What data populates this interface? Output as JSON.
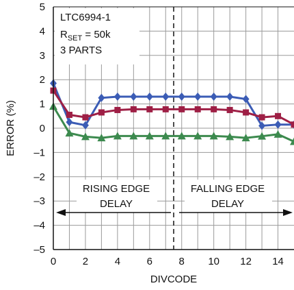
{
  "chart_data": {
    "type": "line",
    "xlabel": "DIVCODE",
    "ylabel": "ERROR (%)",
    "xlim": [
      0,
      15
    ],
    "ylim": [
      -5,
      5
    ],
    "xticks": [
      "0",
      "2",
      "4",
      "6",
      "8",
      "10",
      "12",
      "14"
    ],
    "yticks": [
      "5",
      "4",
      "3",
      "2",
      "1",
      "0",
      "–1",
      "–2",
      "–3",
      "–4",
      "–5"
    ],
    "grid": true,
    "x": [
      0,
      1,
      2,
      3,
      4,
      5,
      6,
      7,
      8,
      9,
      10,
      11,
      12,
      13,
      14,
      15
    ],
    "series": [
      {
        "marker": "diamond",
        "color": "#3b5cb5",
        "values": [
          1.85,
          0.25,
          0.12,
          1.25,
          1.3,
          1.3,
          1.3,
          1.3,
          1.3,
          1.3,
          1.3,
          1.3,
          1.2,
          0.1,
          0.15,
          0.15
        ]
      },
      {
        "marker": "square",
        "color": "#9e1f45",
        "values": [
          1.55,
          0.55,
          0.45,
          0.65,
          0.75,
          0.78,
          0.78,
          0.78,
          0.78,
          0.78,
          0.78,
          0.75,
          0.65,
          0.45,
          0.5,
          0.15
        ]
      },
      {
        "marker": "triangle",
        "color": "#3c8a4e",
        "values": [
          0.9,
          -0.2,
          -0.35,
          -0.4,
          -0.32,
          -0.32,
          -0.32,
          -0.32,
          -0.32,
          -0.32,
          -0.32,
          -0.35,
          -0.4,
          -0.33,
          -0.25,
          -0.55
        ]
      }
    ],
    "annotations": {
      "box_line1": "LTC6994-1",
      "box_line2_main": "R",
      "box_line2_sub": "SET",
      "box_line2_rest": " = 50k",
      "box_line3": "3 PARTS",
      "left_region_line1": "RISING EDGE",
      "left_region_line2": "DELAY",
      "right_region_line1": "FALLING EDGE",
      "right_region_line2": "DELAY",
      "divider_x": 7.5
    }
  }
}
